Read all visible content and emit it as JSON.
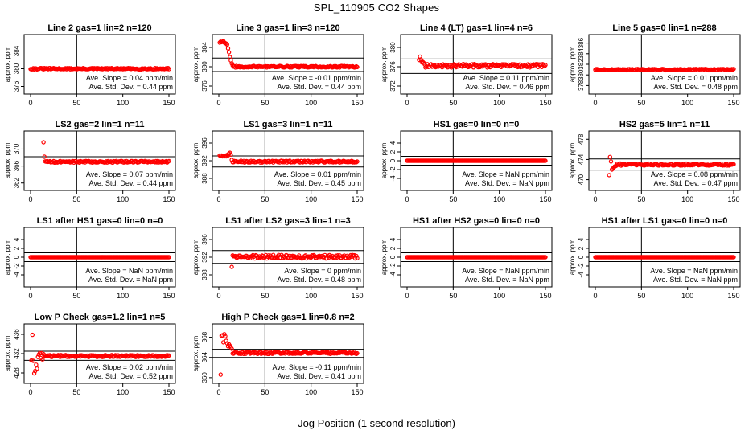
{
  "figure": {
    "title": "SPL_110905  CO2 Shapes",
    "xlabel": "Jog Position (1 second resolution)",
    "ylabel": "approx. ppm"
  },
  "colors": {
    "points": "#ff0000",
    "axes": "#000000"
  },
  "chart_data": [
    {
      "type": "scatter",
      "title": "Line 2 gas=1 lin=2 n=120",
      "xlabel": "Jog Position (1 second resolution)",
      "ylabel": "approx. ppm",
      "xlim": [
        0,
        150
      ],
      "ylim": [
        375,
        387
      ],
      "xticks": [
        0,
        50,
        100,
        150
      ],
      "yticks": [
        376,
        380,
        384
      ],
      "vline": 50,
      "hlines": [],
      "baseline": 380,
      "noise": 0.15,
      "start": 0,
      "spikes": [],
      "slope_label": "Ave. Slope = 0.04 ppm/min",
      "sd_label": "Ave. Std. Dev. = 0.44 ppm"
    },
    {
      "type": "scatter",
      "title": "Line 3 gas=1 lin=3 n=120",
      "xlabel": "Jog Position (1 second resolution)",
      "ylabel": "approx. ppm",
      "xlim": [
        0,
        150
      ],
      "ylim": [
        375,
        386
      ],
      "xticks": [
        0,
        50,
        100,
        150
      ],
      "yticks": [
        376,
        380,
        384
      ],
      "vline": 50,
      "hlines": [
        381.8,
        379
      ],
      "baseline": 380,
      "noise": 0.15,
      "start": 1,
      "spikes": [
        [
          1,
          385
        ],
        [
          2,
          385.2
        ],
        [
          3,
          385.1
        ],
        [
          4,
          385.2
        ],
        [
          5,
          385.3
        ],
        [
          6,
          385
        ],
        [
          7,
          384.9
        ],
        [
          8,
          384.8
        ],
        [
          9,
          384.6
        ],
        [
          10,
          383.8
        ],
        [
          11,
          383
        ],
        [
          12,
          382
        ],
        [
          13,
          381.3
        ],
        [
          14,
          380.7
        ],
        [
          15,
          380.3
        ]
      ],
      "slope_label": "Ave. Slope = -0.01 ppm/min",
      "sd_label": "Ave. Std. Dev. = 0.44 ppm"
    },
    {
      "type": "scatter",
      "title": "Line 4 (LT) gas=1 lin=4 n=6",
      "xlabel": "Jog Position (1 second resolution)",
      "ylabel": "approx. ppm",
      "xlim": [
        0,
        150
      ],
      "ylim": [
        371,
        382
      ],
      "xticks": [
        0,
        50,
        100,
        150
      ],
      "yticks": [
        372,
        376,
        380
      ],
      "vline": 50,
      "hlines": [
        377.6,
        374.6
      ],
      "baseline": 376.2,
      "noise": 0.35,
      "start": 13,
      "spikes": [
        [
          13,
          377.4
        ],
        [
          14,
          378.1
        ],
        [
          15,
          377.5
        ],
        [
          16,
          376.9
        ],
        [
          17,
          377
        ],
        [
          18,
          376.8
        ],
        [
          19,
          376.5
        ]
      ],
      "slope_label": "Ave. Slope = 0.11 ppm/min",
      "sd_label": "Ave. Std. Dev. = 0.46 ppm"
    },
    {
      "type": "scatter",
      "title": "Line 5 gas=0 lin=1 n=288",
      "xlabel": "Jog Position (1 second resolution)",
      "ylabel": "approx. ppm",
      "xlim": [
        0,
        150
      ],
      "ylim": [
        377,
        387
      ],
      "xticks": [
        0,
        50,
        100,
        150
      ],
      "yticks": [
        378,
        380,
        382,
        384,
        386
      ],
      "vline": 50,
      "hlines": [],
      "baseline": 381,
      "noise": 0.12,
      "start": 0,
      "spikes": [],
      "slope_label": "Ave. Slope = 0.01 ppm/min",
      "sd_label": "Ave. Std. Dev. = 0.48 ppm"
    },
    {
      "type": "scatter",
      "title": "LS2 gas=2 lin=1 n=11",
      "xlabel": "Jog Position (1 second resolution)",
      "ylabel": "approx. ppm",
      "xlim": [
        0,
        150
      ],
      "ylim": [
        361,
        373.5
      ],
      "xticks": [
        0,
        50,
        100,
        150
      ],
      "yticks": [
        362,
        366,
        370
      ],
      "vline": 50,
      "hlines": [
        368.2
      ],
      "baseline": 367,
      "noise": 0.2,
      "start": 14,
      "spikes": [
        [
          14,
          371.6
        ],
        [
          15,
          368.2
        ]
      ],
      "slope_label": "Ave. Slope = 0.07 ppm/min",
      "sd_label": "Ave. Std. Dev. = 0.44 ppm"
    },
    {
      "type": "scatter",
      "title": "LS1 gas=3 lin=1 n=11",
      "xlabel": "Jog Position (1 second resolution)",
      "ylabel": "approx. ppm",
      "xlim": [
        0,
        150
      ],
      "ylim": [
        386,
        398
      ],
      "xticks": [
        0,
        50,
        100,
        150
      ],
      "yticks": [
        388,
        392,
        396
      ],
      "vline": 50,
      "hlines": [
        393.1,
        390.6
      ],
      "baseline": 391.8,
      "noise": 0.2,
      "start": 1,
      "spikes": [
        [
          1,
          393.2
        ],
        [
          2,
          393.1
        ],
        [
          3,
          393.2
        ],
        [
          4,
          393
        ],
        [
          5,
          393.1
        ],
        [
          6,
          393
        ],
        [
          7,
          393.1
        ],
        [
          8,
          393
        ],
        [
          9,
          393.3
        ],
        [
          10,
          393.2
        ],
        [
          11,
          393.6
        ],
        [
          12,
          393.8
        ],
        [
          13,
          393.4
        ],
        [
          14,
          392.2
        ]
      ],
      "slope_label": "Ave. Slope = 0.01 ppm/min",
      "sd_label": "Ave. Std. Dev. = 0.45 ppm"
    },
    {
      "type": "scatter",
      "title": "HS1 gas=0 lin=0 n=0",
      "xlabel": "Jog Position (1 second resolution)",
      "ylabel": "approx. ppm",
      "xlim": [
        0,
        150
      ],
      "ylim": [
        -6,
        6
      ],
      "xticks": [
        0,
        50,
        100,
        150
      ],
      "yticks": [
        -4,
        -2,
        0,
        2,
        4
      ],
      "vline": 50,
      "hlines": [
        1,
        -1
      ],
      "baseline": 0,
      "noise": 0,
      "start": 0,
      "spikes": [],
      "slope_label": "Ave. Slope = NaN ppm/min",
      "sd_label": "Ave. Std. Dev. = NaN ppm"
    },
    {
      "type": "scatter",
      "title": "HS2 gas=5 lin=1 n=11",
      "xlabel": "Jog Position (1 second resolution)",
      "ylabel": "approx. ppm",
      "xlim": [
        0,
        150
      ],
      "ylim": [
        468.5,
        479
      ],
      "xticks": [
        0,
        50,
        100,
        150
      ],
      "yticks": [
        470,
        474,
        478
      ],
      "vline": 50,
      "hlines": [
        474.1,
        471.9
      ],
      "baseline": 473,
      "noise": 0.2,
      "start": 15,
      "spikes": [
        [
          15,
          470.9
        ],
        [
          16,
          474.5
        ],
        [
          17,
          473.6
        ],
        [
          18,
          472
        ],
        [
          19,
          472.2
        ],
        [
          20,
          472.4
        ],
        [
          21,
          472.6
        ],
        [
          22,
          472.7
        ],
        [
          23,
          472.8
        ]
      ],
      "slope_label": "Ave. Slope = 0.08 ppm/min",
      "sd_label": "Ave. Std. Dev. = 0.47 ppm"
    },
    {
      "type": "scatter",
      "title": "LS1 after HS1 gas=0 lin=0 n=0",
      "xlabel": "Jog Position (1 second resolution)",
      "ylabel": "approx. ppm",
      "xlim": [
        0,
        150
      ],
      "ylim": [
        -6,
        6
      ],
      "xticks": [
        0,
        50,
        100,
        150
      ],
      "yticks": [
        -4,
        -2,
        0,
        2,
        4
      ],
      "vline": 50,
      "hlines": [
        1,
        -1
      ],
      "baseline": 0,
      "noise": 0,
      "start": 0,
      "spikes": [],
      "slope_label": "Ave. Slope = NaN ppm/min",
      "sd_label": "Ave. Std. Dev. = NaN ppm"
    },
    {
      "type": "scatter",
      "title": "LS1 after LS2 gas=3 lin=1 n=3",
      "xlabel": "Jog Position (1 second resolution)",
      "ylabel": "approx. ppm",
      "xlim": [
        0,
        150
      ],
      "ylim": [
        386,
        398
      ],
      "xticks": [
        0,
        50,
        100,
        150
      ],
      "yticks": [
        388,
        392,
        396
      ],
      "vline": 50,
      "hlines": [
        393.5,
        390.6
      ],
      "baseline": 392.1,
      "noise": 0.4,
      "start": 14,
      "spikes": [
        [
          14,
          389.8
        ],
        [
          15,
          392.4
        ]
      ],
      "slope_label": "Ave. Slope = 0  ppm/min",
      "sd_label": "Ave. Std. Dev. = 0.48 ppm"
    },
    {
      "type": "scatter",
      "title": "HS1 after HS2 gas=0 lin=0 n=0",
      "xlabel": "Jog Position (1 second resolution)",
      "ylabel": "approx. ppm",
      "xlim": [
        0,
        150
      ],
      "ylim": [
        -6,
        6
      ],
      "xticks": [
        0,
        50,
        100,
        150
      ],
      "yticks": [
        -4,
        -2,
        0,
        2,
        4
      ],
      "vline": 50,
      "hlines": [
        1,
        -1
      ],
      "baseline": 0,
      "noise": 0,
      "start": 0,
      "spikes": [],
      "slope_label": "Ave. Slope = NaN ppm/min",
      "sd_label": "Ave. Std. Dev. = NaN ppm"
    },
    {
      "type": "scatter",
      "title": "HS1 after LS1 gas=0 lin=0 n=0",
      "xlabel": "Jog Position (1 second resolution)",
      "ylabel": "approx. ppm",
      "xlim": [
        0,
        150
      ],
      "ylim": [
        -6,
        6
      ],
      "xticks": [
        0,
        50,
        100,
        150
      ],
      "yticks": [
        -4,
        -2,
        0,
        2,
        4
      ],
      "vline": 50,
      "hlines": [
        1,
        -1
      ],
      "baseline": 0,
      "noise": 0,
      "start": 0,
      "spikes": [],
      "slope_label": "Ave. Slope = NaN ppm/min",
      "sd_label": "Ave. Std. Dev. = NaN ppm"
    },
    {
      "type": "scatter",
      "title": "Low P Check gas=1.2 lin=1 n=5",
      "xlabel": "Jog Position (1 second resolution)",
      "ylabel": "approx. ppm",
      "xlim": [
        0,
        150
      ],
      "ylim": [
        426.5,
        437.5
      ],
      "xticks": [
        0,
        50,
        100,
        150
      ],
      "yticks": [
        428,
        432,
        436
      ],
      "vline": 50,
      "hlines": [
        432.5,
        430.6
      ],
      "baseline": 431.5,
      "noise": 0.2,
      "start": 1,
      "spikes": [
        [
          1,
          430.6
        ],
        [
          2,
          435.9
        ],
        [
          3,
          430.5
        ],
        [
          4,
          427.9
        ],
        [
          5,
          428.4
        ],
        [
          6,
          429.7
        ],
        [
          7,
          428.9
        ],
        [
          8,
          431.3
        ],
        [
          9,
          431.8
        ],
        [
          10,
          432.1
        ],
        [
          11,
          431.1
        ],
        [
          12,
          432.1
        ],
        [
          13,
          430.8
        ],
        [
          14,
          431.9
        ],
        [
          15,
          431.6
        ]
      ],
      "slope_label": "Ave. Slope = 0.02 ppm/min",
      "sd_label": "Ave. Std. Dev. = 0.52 ppm"
    },
    {
      "type": "scatter",
      "title": "High P Check gas=1 lin=0.8 n=2",
      "xlabel": "Jog Position (1 second resolution)",
      "ylabel": "approx. ppm",
      "xlim": [
        0,
        150
      ],
      "ylim": [
        359.5,
        370
      ],
      "xticks": [
        0,
        50,
        100,
        150
      ],
      "yticks": [
        360,
        364,
        368
      ],
      "vline": 50,
      "hlines": [
        365.6,
        364
      ],
      "baseline": 364.9,
      "noise": 0.2,
      "start": 2,
      "spikes": [
        [
          2,
          360.6
        ],
        [
          3,
          368.3
        ],
        [
          4,
          368.4
        ],
        [
          5,
          367
        ],
        [
          6,
          368.6
        ],
        [
          7,
          368.2
        ],
        [
          8,
          367.3
        ],
        [
          9,
          366.8
        ],
        [
          10,
          366.2
        ],
        [
          11,
          366.6
        ],
        [
          12,
          366.3
        ],
        [
          13,
          366
        ],
        [
          14,
          365.7
        ]
      ],
      "slope_label": "Ave. Slope = -0.11 ppm/min",
      "sd_label": "Ave. Std. Dev. = 0.41 ppm"
    }
  ]
}
